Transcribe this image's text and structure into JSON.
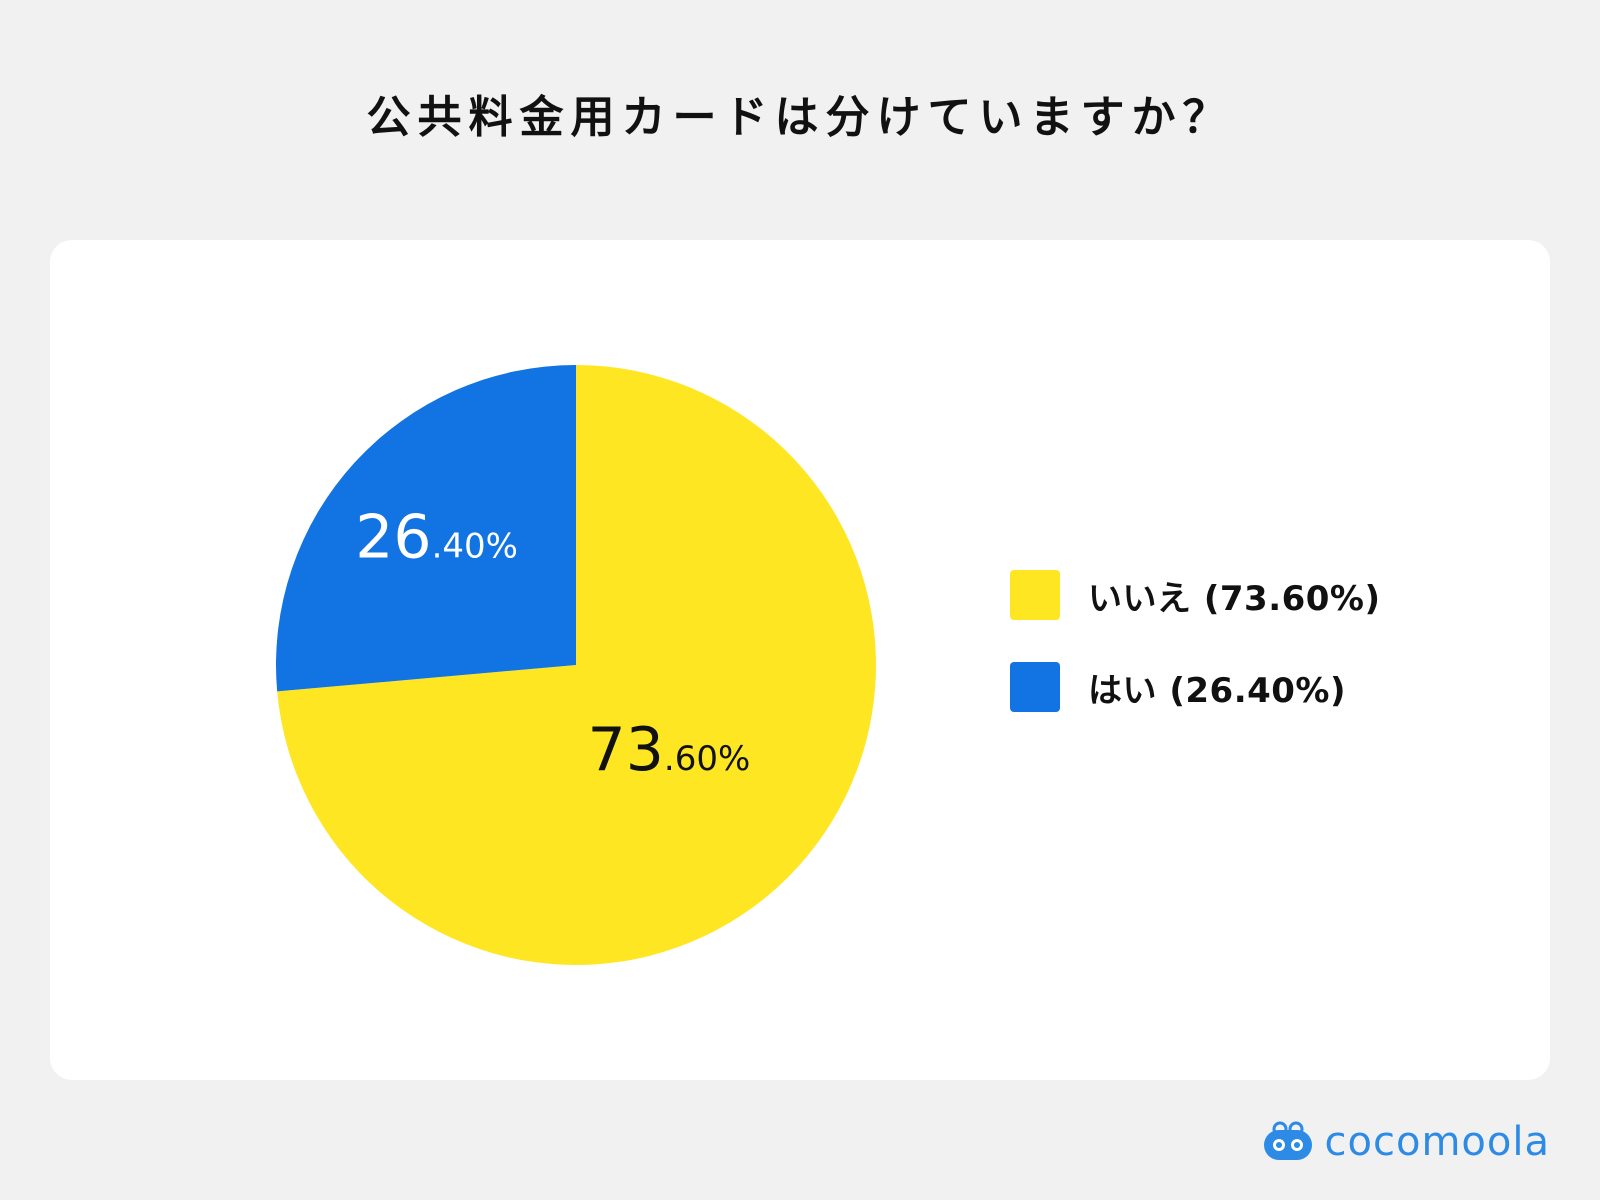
{
  "title": "公共料金用カードは分けていますか？",
  "chart_data": {
    "type": "pie",
    "title": "公共料金用カードは分けていますか？",
    "slices": [
      {
        "name": "いいえ",
        "value": 73.6,
        "int_part": "73",
        "dec_part": ".60%",
        "color": "#ffe623",
        "label_color": "#111111",
        "legend_text": "いいえ (73.60%)"
      },
      {
        "name": "はい",
        "value": 26.4,
        "int_part": "26",
        "dec_part": ".40%",
        "color": "#1273e3",
        "label_color": "#ffffff",
        "legend_text": "はい (26.40%)"
      }
    ],
    "legend_position": "right"
  },
  "brand": {
    "name": "cocomoola",
    "color": "#2d8be6",
    "icon": "cocomoola-logo-icon"
  }
}
